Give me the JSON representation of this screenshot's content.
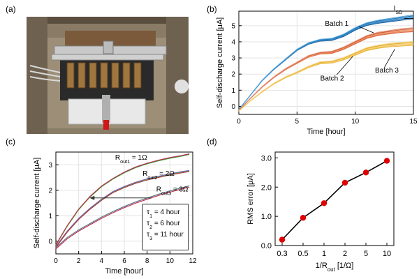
{
  "panels": {
    "a": "(a)",
    "b": "(b)",
    "c": "(c)",
    "d": "(d)"
  },
  "chart_data": [
    {
      "panel": "b",
      "type": "line",
      "xlabel": "Time [hour]",
      "ylabel": "Self-discharge current [μA]",
      "xlim": [
        0,
        15
      ],
      "ylim": [
        -0.5,
        5.9
      ],
      "xticks": [
        0,
        5,
        10,
        15
      ],
      "yticks": [
        0,
        1,
        2,
        3,
        4,
        5
      ],
      "grid": true,
      "colors": {
        "Batch 1": "#1f77b4",
        "Batch 2": "#e8784a",
        "Batch 3": "#f2c14e"
      },
      "annotations": [
        "Batch 1",
        "Batch 2",
        "Batch 3",
        "I",
        "SD"
      ],
      "series": [
        {
          "name": "Batch 1",
          "x": [
            0,
            1,
            2,
            3,
            4,
            5,
            6,
            7,
            8,
            9,
            10,
            11,
            12,
            13,
            14,
            15
          ],
          "y": [
            -0.2,
            0.7,
            1.6,
            2.3,
            2.9,
            3.5,
            3.9,
            4.1,
            4.15,
            4.4,
            4.8,
            5.1,
            5.25,
            5.35,
            5.45,
            5.55
          ]
        },
        {
          "name": "Batch 2",
          "x": [
            0,
            1,
            2,
            3,
            4,
            5,
            6,
            7,
            8,
            9,
            10,
            11,
            12,
            13,
            14,
            15
          ],
          "y": [
            -0.25,
            0.5,
            1.2,
            1.8,
            2.3,
            2.7,
            3.1,
            3.3,
            3.35,
            3.6,
            3.95,
            4.3,
            4.5,
            4.6,
            4.7,
            4.75
          ]
        },
        {
          "name": "Batch 3",
          "x": [
            0,
            1,
            2,
            3,
            4,
            5,
            6,
            7,
            8,
            9,
            10,
            11,
            12,
            13,
            14,
            15
          ],
          "y": [
            -0.3,
            0.35,
            0.9,
            1.4,
            1.8,
            2.1,
            2.45,
            2.7,
            2.75,
            2.95,
            3.25,
            3.55,
            3.7,
            3.8,
            3.85,
            3.9
          ]
        }
      ]
    },
    {
      "panel": "c",
      "type": "line",
      "xlabel": "Time [hour]",
      "ylabel": "Self-discharge current [μA]",
      "xlim": [
        0,
        12
      ],
      "ylim": [
        -0.5,
        3.5
      ],
      "xticks": [
        0,
        2,
        4,
        6,
        8,
        10,
        12
      ],
      "yticks": [
        0,
        1,
        2,
        3
      ],
      "grid": true,
      "curve_labels": {
        "r1": "R",
        "r1_sub": "out1",
        "r1_val": " = 1Ω",
        "r2": "R",
        "r2_sub": "out2",
        "r2_val": " = 2Ω",
        "r3": "R",
        "r3_sub": "out3",
        "r3_val": " = 3Ω"
      },
      "legend_box": [
        {
          "sym": "τ",
          "sub": "1",
          "rest": " = 4 hour"
        },
        {
          "sym": "τ",
          "sub": "2",
          "rest": " = 6 hour"
        },
        {
          "sym": "τ",
          "sub": "3",
          "rest": " = 11 hour"
        }
      ],
      "series": [
        {
          "x": [
            0,
            1,
            2,
            3,
            4,
            5,
            6,
            7,
            8,
            9,
            10,
            11,
            11.7
          ],
          "y": [
            -0.15,
            0.6,
            1.25,
            1.75,
            2.15,
            2.45,
            2.7,
            2.9,
            3.05,
            3.17,
            3.27,
            3.35,
            3.42
          ]
        },
        {
          "x": [
            0,
            1,
            2,
            3,
            4,
            5,
            6,
            7,
            8,
            9,
            10,
            11,
            11.7
          ],
          "y": [
            -0.2,
            0.4,
            0.9,
            1.3,
            1.65,
            1.95,
            2.15,
            2.32,
            2.45,
            2.55,
            2.65,
            2.73,
            2.78
          ]
        },
        {
          "x": [
            0,
            1,
            2,
            3,
            4,
            5,
            6,
            7,
            8,
            9,
            10,
            11,
            11.7
          ],
          "y": [
            -0.25,
            0.15,
            0.45,
            0.7,
            0.95,
            1.17,
            1.37,
            1.55,
            1.7,
            1.85,
            1.98,
            2.1,
            2.18
          ]
        }
      ]
    },
    {
      "panel": "d",
      "type": "line",
      "xlabel_main": "1/R",
      "xlabel_sub": "out",
      "xlabel_tail": " [1/Ω]",
      "ylabel": "RMS error [μA]",
      "categories": [
        "0.3",
        "0.5",
        "1",
        "2",
        "5",
        "10"
      ],
      "values": [
        0.2,
        0.95,
        1.45,
        2.15,
        2.5,
        2.9
      ],
      "ylim": [
        0,
        3.2
      ],
      "yticks": [
        "0.0",
        "1.0",
        "2.0",
        "3.0"
      ],
      "grid": false,
      "colors": {
        "marker": "#e00000",
        "line": "#000000"
      }
    }
  ]
}
